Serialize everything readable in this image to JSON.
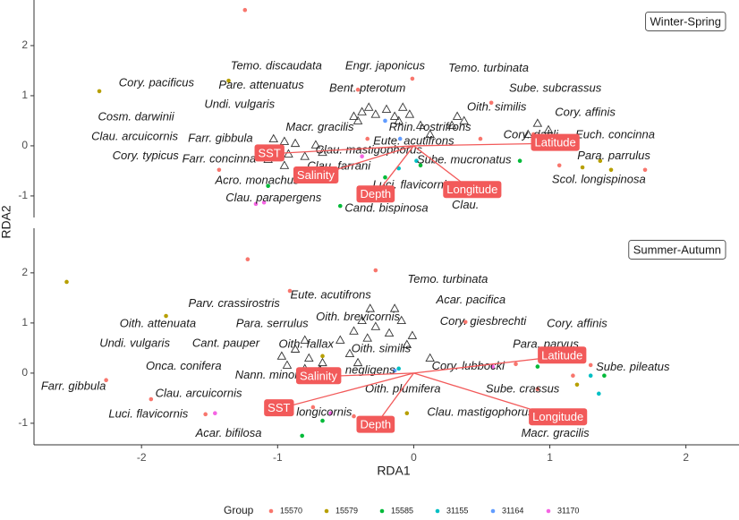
{
  "chart_data": [
    {
      "type": "rda-biplot",
      "panel": "Winter-Spring",
      "ylabel": "RDA2",
      "xlim": [
        -2.79,
        2.39
      ],
      "ylim": [
        -1.43,
        2.91
      ],
      "yticks": [
        -1,
        0,
        1,
        2
      ],
      "series": [
        {
          "name": "15570",
          "color": "#F8766D",
          "x": [
            -1.24,
            -1.43,
            -0.41,
            -0.01,
            0.57,
            0.88,
            1.7,
            1.07,
            -0.34,
            0.49
          ],
          "y": [
            2.71,
            -0.48,
            1.12,
            1.34,
            0.86,
            0.23,
            -0.48,
            -0.39,
            0.14,
            0.14
          ]
        },
        {
          "name": "15579",
          "color": "#B79F00",
          "x": [
            -2.31,
            -1.36,
            1.24,
            1.37,
            1.45
          ],
          "y": [
            1.09,
            1.3,
            -0.43,
            -0.3,
            -0.48
          ]
        },
        {
          "name": "15585",
          "color": "#00BA38",
          "x": [
            -1.07,
            -0.87,
            -0.54,
            0.05,
            0.78,
            -0.21
          ],
          "y": [
            -0.8,
            -0.66,
            -1.2,
            -0.39,
            -0.3,
            -0.63
          ]
        },
        {
          "name": "31155",
          "color": "#00BFC4",
          "x": [
            -0.11,
            0.02
          ],
          "y": [
            -0.45,
            -0.3
          ]
        },
        {
          "name": "31164",
          "color": "#619CFF",
          "x": [
            -0.21,
            -0.1
          ],
          "y": [
            0.5,
            0.14
          ]
        },
        {
          "name": "31170",
          "color": "#F564E3",
          "x": [
            -1.16,
            -1.1,
            -0.38
          ],
          "y": [
            -1.16,
            -1.13,
            -0.21
          ]
        }
      ],
      "species_points": {
        "x": [
          -1.03,
          -0.95,
          -0.87,
          -1.0,
          -0.92,
          -1.07,
          -0.95,
          -0.8,
          -0.72,
          -0.67,
          -0.44,
          -0.38,
          -0.41,
          -0.33,
          -0.28,
          -0.2,
          -0.14,
          -0.08,
          -0.11,
          -0.03,
          0.32,
          0.37,
          0.28,
          0.91,
          0.99,
          0.84,
          0.05,
          0.12
        ],
        "y": [
          0.14,
          0.09,
          0.05,
          -0.13,
          -0.16,
          -0.27,
          -0.39,
          -0.21,
          0.02,
          -0.13,
          0.59,
          0.68,
          0.5,
          0.77,
          0.63,
          0.73,
          0.59,
          0.77,
          0.5,
          0.63,
          0.59,
          0.5,
          0.41,
          0.45,
          0.32,
          0.23,
          0.41,
          0.23
        ]
      },
      "species_labels": [
        {
          "name": "Temo. discaudata",
          "x": -1.01,
          "y": 1.59
        },
        {
          "name": "Engr. japonicus",
          "x": -0.21,
          "y": 1.59
        },
        {
          "name": "Temo. turbinata",
          "x": 0.55,
          "y": 1.54
        },
        {
          "name": "Cory. pacificus",
          "x": -1.89,
          "y": 1.25
        },
        {
          "name": "Pare. attenuatus",
          "x": -1.12,
          "y": 1.2
        },
        {
          "name": "Bent. pterotum",
          "x": -0.34,
          "y": 1.14
        },
        {
          "name": "Sube. subcrassus",
          "x": 1.04,
          "y": 1.14
        },
        {
          "name": "Undi. vulgaris",
          "x": -1.28,
          "y": 0.82
        },
        {
          "name": "Cosm. darwinii",
          "x": -2.04,
          "y": 0.57
        },
        {
          "name": "Oith. similis",
          "x": 0.61,
          "y": 0.77
        },
        {
          "name": "Cory. affinis",
          "x": 1.26,
          "y": 0.66
        },
        {
          "name": "Macr. gracilis",
          "x": -0.69,
          "y": 0.36
        },
        {
          "name": "Rhin. rostrifrons",
          "x": 0.12,
          "y": 0.36
        },
        {
          "name": "Clau. arcuicornis",
          "x": -2.05,
          "y": 0.18
        },
        {
          "name": "Farr. gibbula",
          "x": -1.42,
          "y": 0.14
        },
        {
          "name": "Eute. acutifrons",
          "x": 0,
          "y": 0.09
        },
        {
          "name": "Cory. dahli",
          "x": 0.86,
          "y": 0.21
        },
        {
          "name": "Euch. concinna",
          "x": 1.48,
          "y": 0.21
        },
        {
          "name": "Clau. mastigophorus",
          "x": -0.33,
          "y": -0.09
        },
        {
          "name": "Cory. typicus",
          "x": -1.97,
          "y": -0.21
        },
        {
          "name": "Farr. concinna",
          "x": -1.43,
          "y": -0.27
        },
        {
          "name": "Sube. mucronatus",
          "x": 0.37,
          "y": -0.29
        },
        {
          "name": "Para. parrulus",
          "x": 1.47,
          "y": -0.21
        },
        {
          "name": "Clau. farrani",
          "x": -0.55,
          "y": -0.41
        },
        {
          "name": "Acro. monachus",
          "x": -1.15,
          "y": -0.7
        },
        {
          "name": "Scol. longispinosa",
          "x": 1.36,
          "y": -0.68
        },
        {
          "name": "Luci. flavicornis",
          "x": -0.01,
          "y": -0.79
        },
        {
          "name": "Clau. parapergens",
          "x": -1.03,
          "y": -1.05
        },
        {
          "name": "Clau.",
          "x": 0.38,
          "y": -1.19
        },
        {
          "name": "Cand. bispinosa",
          "x": -0.2,
          "y": -1.25
        }
      ],
      "vectors": [
        {
          "name": "Latitude",
          "x": 1.04,
          "y": 0.05
        },
        {
          "name": "Longitude",
          "x": 0.43,
          "y": -0.89
        },
        {
          "name": "SST",
          "x": -1.06,
          "y": -0.16
        },
        {
          "name": "Salinity",
          "x": -0.72,
          "y": -0.6
        },
        {
          "name": "Depth",
          "x": -0.28,
          "y": -0.98
        }
      ]
    },
    {
      "type": "rda-biplot",
      "panel": "Summer-Autumn",
      "xlabel": "RDA1",
      "legend_title": "Group",
      "xlim": [
        -2.79,
        2.39
      ],
      "ylim": [
        -1.43,
        2.89
      ],
      "xticks": [
        -2,
        -1,
        0,
        1,
        2
      ],
      "yticks": [
        -1,
        0,
        1,
        2
      ],
      "series": [
        {
          "name": "15570",
          "color": "#F8766D",
          "x": [
            -1.22,
            -0.91,
            -0.28,
            -2.26,
            -1.93,
            -1.53,
            0.38,
            0.75,
            0.97,
            1.17,
            1.3,
            0.91,
            -0.44,
            -0.74
          ],
          "y": [
            2.27,
            1.64,
            2.05,
            -0.14,
            -0.52,
            -0.82,
            1.02,
            0.18,
            0.48,
            -0.05,
            0.16,
            -0.32,
            -0.86,
            -0.68
          ]
        },
        {
          "name": "15579",
          "color": "#B79F00",
          "x": [
            -2.55,
            -1.82,
            -0.05,
            1.2,
            -0.67
          ],
          "y": [
            1.82,
            1.14,
            -0.8,
            -0.23,
            0.34
          ]
        },
        {
          "name": "15585",
          "color": "#00BA38",
          "x": [
            -0.82,
            -0.67,
            0.91,
            1.11,
            1.4
          ],
          "y": [
            -1.25,
            -0.95,
            0.13,
            -0.95,
            -0.05
          ]
        },
        {
          "name": "31155",
          "color": "#00BFC4",
          "x": [
            1.3,
            1.36,
            -0.11
          ],
          "y": [
            -0.05,
            -0.41,
            0.09
          ]
        },
        {
          "name": "31164",
          "color": "#619CFF",
          "x": [
            -0.14
          ],
          "y": [
            0.05
          ]
        },
        {
          "name": "31170",
          "color": "#F564E3",
          "x": [
            -1.46,
            -0.61,
            0.58
          ],
          "y": [
            -0.8,
            -0.8,
            0.13
          ]
        }
      ],
      "species_points": {
        "x": [
          -0.32,
          -0.38,
          -0.14,
          -0.09,
          -0.28,
          -0.18,
          -0.01,
          -0.05,
          -0.34,
          -0.44,
          -0.54,
          -0.8,
          -0.87,
          -0.97,
          -0.93,
          -0.77,
          -0.67,
          -0.8,
          -0.77,
          -0.41,
          -0.47,
          0.12
        ],
        "y": [
          1.29,
          1.05,
          1.29,
          1.05,
          0.93,
          0.8,
          0.75,
          0.57,
          0.7,
          0.84,
          0.66,
          0.66,
          0.48,
          0.34,
          0.16,
          0.3,
          0.21,
          0.09,
          -0.14,
          0.21,
          0.39,
          0.3
        ]
      },
      "species_labels": [
        {
          "name": "Temo. turbinata",
          "x": 0.25,
          "y": 1.86
        },
        {
          "name": "Parv. crassirostris",
          "x": -1.32,
          "y": 1.38
        },
        {
          "name": "Eute. acutifrons",
          "x": -0.61,
          "y": 1.55
        },
        {
          "name": "Acar. pacifica",
          "x": 0.42,
          "y": 1.45
        },
        {
          "name": "Oith. attenuata",
          "x": -1.88,
          "y": 0.98
        },
        {
          "name": "Para. serrulus",
          "x": -1.04,
          "y": 0.98
        },
        {
          "name": "Oith. brevicornis",
          "x": -0.41,
          "y": 1.11
        },
        {
          "name": "Cory. giesbrechti",
          "x": 0.51,
          "y": 1.02
        },
        {
          "name": "Cory. affinis",
          "x": 1.2,
          "y": 0.98
        },
        {
          "name": "Undi. vulgaris",
          "x": -2.05,
          "y": 0.59
        },
        {
          "name": "Cant. pauper",
          "x": -1.38,
          "y": 0.59
        },
        {
          "name": "Oith. fallax",
          "x": -0.79,
          "y": 0.57
        },
        {
          "name": "Oith. similis",
          "x": -0.24,
          "y": 0.48
        },
        {
          "name": "Para. parvus",
          "x": 0.97,
          "y": 0.57
        },
        {
          "name": "Onca. conifera",
          "x": -1.69,
          "y": 0.13
        },
        {
          "name": "Nann. minor",
          "x": -1.08,
          "y": -0.05
        },
        {
          "name": "Acar. negligens",
          "x": -0.43,
          "y": 0.05
        },
        {
          "name": "Cory. lubbocki",
          "x": 0.4,
          "y": 0.13
        },
        {
          "name": "Sube. pileatus",
          "x": 1.61,
          "y": 0.11
        },
        {
          "name": "Farr. gibbula",
          "x": -2.5,
          "y": -0.27
        },
        {
          "name": "Clau. arcuicornis",
          "x": -1.58,
          "y": -0.41
        },
        {
          "name": "Oith. plumifera",
          "x": -0.08,
          "y": -0.32
        },
        {
          "name": "Sube. crassus",
          "x": 0.8,
          "y": -0.32
        },
        {
          "name": "Luci. flavicornis",
          "x": -1.95,
          "y": -0.82
        },
        {
          "name": "Acro. longicornis",
          "x": -0.77,
          "y": -0.79
        },
        {
          "name": "Clau. mastigophorus",
          "x": 0.49,
          "y": -0.79
        },
        {
          "name": "Acar. bifilosa",
          "x": -1.36,
          "y": -1.21
        },
        {
          "name": "Macr. gracilis",
          "x": 1.04,
          "y": -1.21
        }
      ],
      "vectors": [
        {
          "name": "Latitude",
          "x": 1.09,
          "y": 0.34
        },
        {
          "name": "Longitude",
          "x": 1.06,
          "y": -0.89
        },
        {
          "name": "SST",
          "x": -0.99,
          "y": -0.71
        },
        {
          "name": "Salinity",
          "x": -0.7,
          "y": -0.07
        },
        {
          "name": "Depth",
          "x": -0.28,
          "y": -1.04
        }
      ]
    }
  ]
}
